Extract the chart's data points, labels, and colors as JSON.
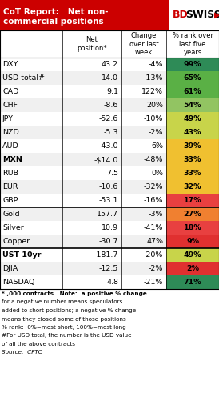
{
  "title_line1": "CoT Report:   Net non-",
  "title_line2": "commercial positions",
  "rows": [
    {
      "label": "DXY",
      "net": "43.2",
      "change": "-4%",
      "rank": "99%",
      "rank_val": 99
    },
    {
      "label": "USD total#",
      "net": "14.0",
      "change": "-13%",
      "rank": "65%",
      "rank_val": 65
    },
    {
      "label": "CAD",
      "net": "9.1",
      "change": "122%",
      "rank": "61%",
      "rank_val": 61
    },
    {
      "label": "CHF",
      "net": "-8.6",
      "change": "20%",
      "rank": "54%",
      "rank_val": 54
    },
    {
      "label": "JPY",
      "net": "-52.6",
      "change": "-10%",
      "rank": "49%",
      "rank_val": 49
    },
    {
      "label": "NZD",
      "net": "-5.3",
      "change": "-2%",
      "rank": "43%",
      "rank_val": 43
    },
    {
      "label": "AUD",
      "net": "-43.0",
      "change": "6%",
      "rank": "39%",
      "rank_val": 39
    },
    {
      "label": "MXN",
      "net": "-$14.0",
      "change": "-48%",
      "rank": "33%",
      "rank_val": 33
    },
    {
      "label": "RUB",
      "net": "7.5",
      "change": "0%",
      "rank": "33%",
      "rank_val": 33
    },
    {
      "label": "EUR",
      "net": "-10.6",
      "change": "-32%",
      "rank": "32%",
      "rank_val": 32
    },
    {
      "label": "GBP",
      "net": "-53.1",
      "change": "-16%",
      "rank": "17%",
      "rank_val": 17
    },
    {
      "label": "Gold",
      "net": "157.7",
      "change": "-3%",
      "rank": "27%",
      "rank_val": 27
    },
    {
      "label": "Silver",
      "net": "10.9",
      "change": "-41%",
      "rank": "18%",
      "rank_val": 18
    },
    {
      "label": "Copper",
      "net": "-30.7",
      "change": "47%",
      "rank": "9%",
      "rank_val": 9
    },
    {
      "label": "UST 10yr",
      "net": "-181.7",
      "change": "-20%",
      "rank": "49%",
      "rank_val": 49
    },
    {
      "label": "DJIA",
      "net": "-12.5",
      "change": "-2%",
      "rank": "2%",
      "rank_val": 2
    },
    {
      "label": "NASDAQ",
      "net": "4.8",
      "change": "-21%",
      "rank": "71%",
      "rank_val": 71
    }
  ],
  "group_separators_after": [
    10,
    13
  ],
  "bold_labels": [
    "MXN",
    "UST 10yr"
  ],
  "title_bg": "#cc0000",
  "footnote_lines": [
    "* ,000 contracts   Note:  a positive % change",
    "for a negative number means speculators",
    "added to short positions; a negative % change",
    "means they closed some of those positions",
    "% rank:  0%=most short, 100%=most long",
    "#For USD total, the number is the USD value",
    "of all the above contracts",
    "Source:  CFTC"
  ]
}
